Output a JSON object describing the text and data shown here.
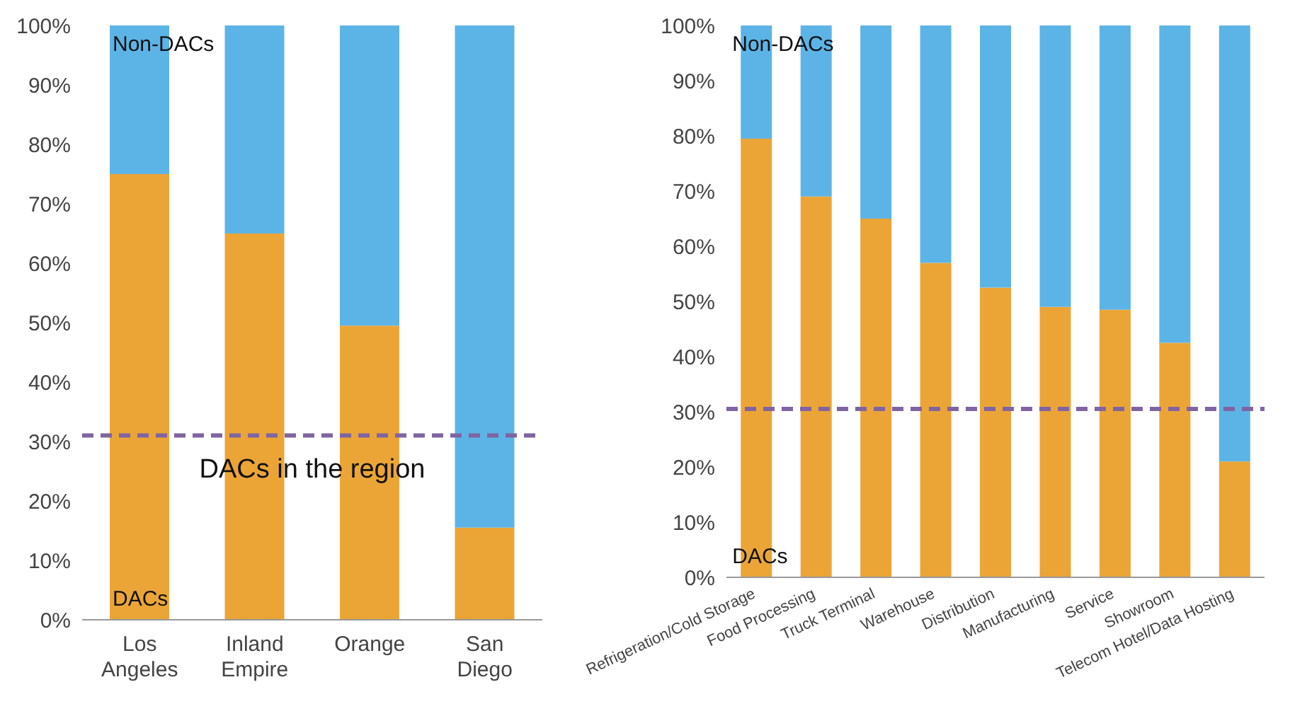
{
  "chart_data": [
    {
      "type": "bar",
      "stacked": true,
      "categories": [
        "Los Angeles",
        "Inland Empire",
        "Orange",
        "San Diego"
      ],
      "series": [
        {
          "name": "DACs",
          "color": "#eba537",
          "values": [
            75,
            65,
            49.5,
            15.5
          ]
        },
        {
          "name": "Non-DACs",
          "color": "#5cb4e6",
          "values": [
            25,
            35,
            50.5,
            84.5
          ]
        }
      ],
      "ylim": [
        0,
        100
      ],
      "yticks": [
        {
          "value": 0,
          "label": "0%"
        },
        {
          "value": 10,
          "label": "10%"
        },
        {
          "value": 20,
          "label": "20%"
        },
        {
          "value": 30,
          "label": "30%"
        },
        {
          "value": 40,
          "label": "40%"
        },
        {
          "value": 50,
          "label": "50%"
        },
        {
          "value": 60,
          "label": "60%"
        },
        {
          "value": 70,
          "label": "70%"
        },
        {
          "value": 80,
          "label": "80%"
        },
        {
          "value": 90,
          "label": "90%"
        },
        {
          "value": 100,
          "label": "100%"
        }
      ],
      "ref_lines": [
        {
          "axis": "y",
          "value": 31,
          "label": "DACs in the region",
          "color": "#8064a2",
          "line_style": "dashed"
        }
      ],
      "grid": false,
      "legend": false
    },
    {
      "type": "bar",
      "stacked": true,
      "categories": [
        "Refrigeration/Cold Storage",
        "Food Processing",
        "Truck Terminal",
        "Warehouse",
        "Distribution",
        "Manufacturing",
        "Service",
        "Showroom",
        "Telecom Hotel/Data Hosting"
      ],
      "series": [
        {
          "name": "DACs",
          "color": "#eba537",
          "values": [
            79.5,
            69,
            65,
            57,
            52.5,
            49,
            48.5,
            42.5,
            21
          ]
        },
        {
          "name": "Non-DACs",
          "color": "#5cb4e6",
          "values": [
            20.5,
            31,
            35,
            43,
            47.5,
            51,
            51.5,
            57.5,
            79
          ]
        }
      ],
      "ylim": [
        0,
        100
      ],
      "yticks": [
        {
          "value": 0,
          "label": "0%"
        },
        {
          "value": 10,
          "label": "10%"
        },
        {
          "value": 20,
          "label": "20%"
        },
        {
          "value": 30,
          "label": "30%"
        },
        {
          "value": 40,
          "label": "40%"
        },
        {
          "value": 50,
          "label": "50%"
        },
        {
          "value": 60,
          "label": "60%"
        },
        {
          "value": 70,
          "label": "70%"
        },
        {
          "value": 80,
          "label": "80%"
        },
        {
          "value": 90,
          "label": "90%"
        },
        {
          "value": 100,
          "label": "100%"
        }
      ],
      "ref_lines": [
        {
          "axis": "y",
          "value": 30.5,
          "color": "#8064a2",
          "line_style": "dashed"
        }
      ],
      "grid": false,
      "legend": false
    }
  ]
}
